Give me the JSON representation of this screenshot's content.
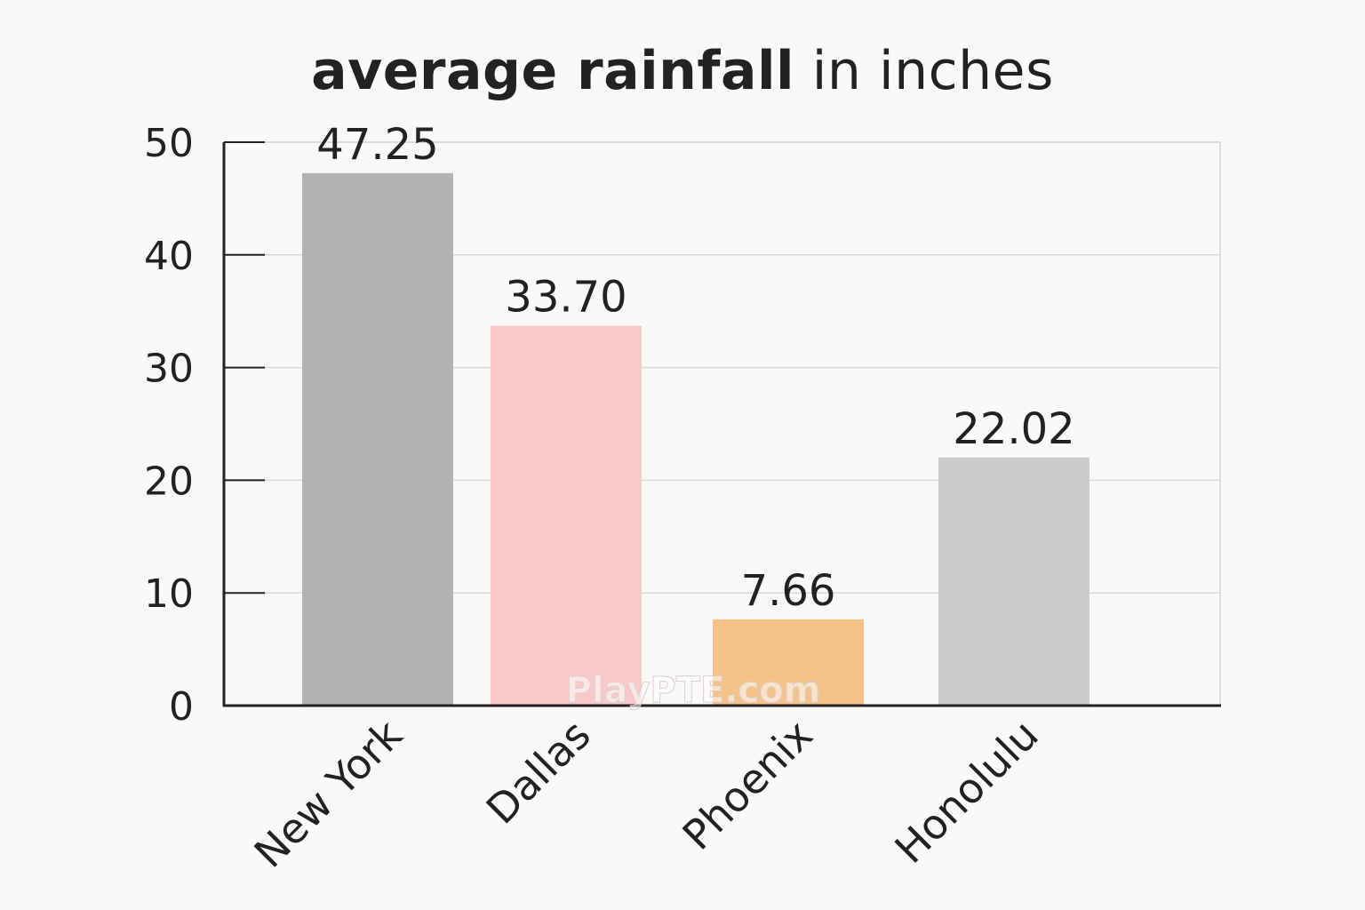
{
  "chart_data": {
    "type": "bar",
    "title_bold": "average rainfall",
    "title_rest": " in inches",
    "categories": [
      "New York",
      "Dallas",
      "Phoenix",
      "Honolulu"
    ],
    "values": [
      47.25,
      33.7,
      7.66,
      22.02
    ],
    "value_labels": [
      "47.25",
      "33.70",
      "7.66",
      "22.02"
    ],
    "colors": [
      "#b3b3b3",
      "#f8c9c9",
      "#f5c28a",
      "#cccccc"
    ],
    "ylim": [
      0,
      50
    ],
    "yticks": [
      0,
      10,
      20,
      30,
      40,
      50
    ],
    "grid": true,
    "xlabel": "",
    "ylabel": ""
  },
  "watermark": "PlayPTE.com"
}
